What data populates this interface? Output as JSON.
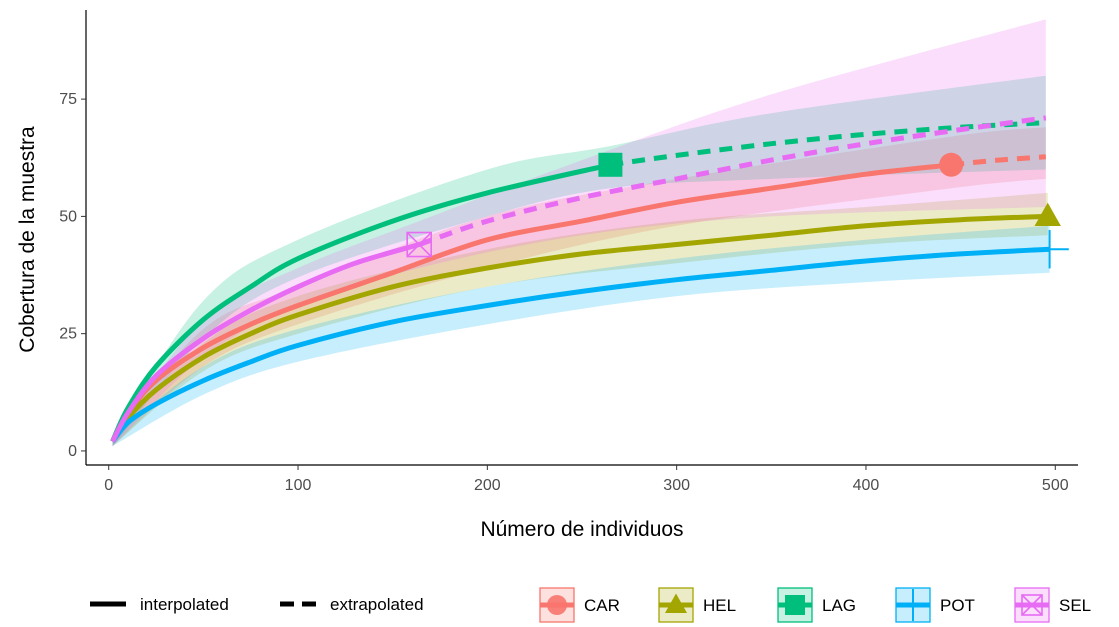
{
  "chart_data": {
    "type": "line",
    "xlabel": "Número de individuos",
    "ylabel": "Cobertura de la muestra",
    "xlim": [
      -12,
      512
    ],
    "ylim": [
      -3,
      94
    ],
    "x_ticks": [
      0,
      100,
      200,
      300,
      400,
      500
    ],
    "y_ticks": [
      0,
      25,
      50,
      75
    ],
    "legend_linetype": [
      {
        "label": "interpolated",
        "style": "solid"
      },
      {
        "label": "extrapolated",
        "style": "dashed"
      }
    ],
    "legend_position": "bottom",
    "grid": false,
    "series": [
      {
        "name": "CAR",
        "color": "#F8766D",
        "marker": "circle",
        "observed": {
          "x": 445,
          "y": 61
        },
        "interpolated": [
          [
            2,
            2
          ],
          [
            10,
            8
          ],
          [
            25,
            15
          ],
          [
            50,
            22
          ],
          [
            75,
            27
          ],
          [
            100,
            31
          ],
          [
            150,
            38
          ],
          [
            200,
            45
          ],
          [
            250,
            49
          ],
          [
            300,
            53
          ],
          [
            350,
            56
          ],
          [
            400,
            59
          ],
          [
            445,
            61
          ]
        ],
        "extrapolated": [
          [
            445,
            61
          ],
          [
            470,
            62
          ],
          [
            495,
            62.7
          ]
        ],
        "ci_lower": [
          [
            2,
            1
          ],
          [
            50,
            18
          ],
          [
            100,
            27
          ],
          [
            200,
            39
          ],
          [
            300,
            48
          ],
          [
            445,
            56
          ],
          [
            495,
            58
          ]
        ],
        "ci_upper": [
          [
            2,
            3
          ],
          [
            50,
            26
          ],
          [
            100,
            35
          ],
          [
            200,
            50
          ],
          [
            300,
            58
          ],
          [
            445,
            67
          ],
          [
            495,
            69
          ]
        ]
      },
      {
        "name": "HEL",
        "color": "#A3A500",
        "marker": "triangle",
        "observed": {
          "x": 496,
          "y": 50
        },
        "interpolated": [
          [
            2,
            2
          ],
          [
            10,
            7
          ],
          [
            25,
            13
          ],
          [
            50,
            20
          ],
          [
            75,
            25
          ],
          [
            100,
            29
          ],
          [
            150,
            35
          ],
          [
            200,
            39
          ],
          [
            250,
            42
          ],
          [
            300,
            44
          ],
          [
            350,
            46
          ],
          [
            400,
            48
          ],
          [
            450,
            49.3
          ],
          [
            496,
            50
          ]
        ],
        "extrapolated": [],
        "ci_lower": [
          [
            2,
            1
          ],
          [
            50,
            17
          ],
          [
            100,
            25
          ],
          [
            200,
            35
          ],
          [
            300,
            40
          ],
          [
            400,
            44
          ],
          [
            496,
            46
          ]
        ],
        "ci_upper": [
          [
            2,
            3
          ],
          [
            50,
            23
          ],
          [
            100,
            33
          ],
          [
            200,
            43
          ],
          [
            300,
            49
          ],
          [
            400,
            52
          ],
          [
            496,
            55
          ]
        ]
      },
      {
        "name": "LAG",
        "color": "#00BF7D",
        "marker": "square",
        "observed": {
          "x": 265,
          "y": 61
        },
        "interpolated": [
          [
            2,
            2
          ],
          [
            10,
            9
          ],
          [
            25,
            18
          ],
          [
            50,
            28
          ],
          [
            75,
            35
          ],
          [
            100,
            41
          ],
          [
            150,
            49
          ],
          [
            200,
            55
          ],
          [
            265,
            61
          ]
        ],
        "extrapolated": [
          [
            265,
            61
          ],
          [
            300,
            63
          ],
          [
            350,
            65.5
          ],
          [
            400,
            67.5
          ],
          [
            450,
            69
          ],
          [
            495,
            70
          ]
        ],
        "ci_lower": [
          [
            2,
            1
          ],
          [
            50,
            24
          ],
          [
            100,
            37
          ],
          [
            200,
            50
          ],
          [
            265,
            56
          ],
          [
            350,
            58
          ],
          [
            495,
            60
          ]
        ],
        "ci_upper": [
          [
            2,
            3
          ],
          [
            50,
            32
          ],
          [
            100,
            45
          ],
          [
            200,
            60
          ],
          [
            265,
            65
          ],
          [
            350,
            72
          ],
          [
            495,
            80
          ]
        ]
      },
      {
        "name": "POT",
        "color": "#00B0F6",
        "marker": "plus",
        "observed": {
          "x": 497,
          "y": 43
        },
        "interpolated": [
          [
            2,
            2
          ],
          [
            10,
            6
          ],
          [
            25,
            10
          ],
          [
            50,
            15
          ],
          [
            75,
            19
          ],
          [
            100,
            22.5
          ],
          [
            150,
            27.5
          ],
          [
            200,
            31
          ],
          [
            250,
            34
          ],
          [
            300,
            36.5
          ],
          [
            350,
            38.5
          ],
          [
            400,
            40.5
          ],
          [
            450,
            42
          ],
          [
            497,
            43
          ]
        ],
        "extrapolated": [],
        "ci_lower": [
          [
            2,
            1
          ],
          [
            50,
            12
          ],
          [
            100,
            19
          ],
          [
            200,
            27
          ],
          [
            300,
            33
          ],
          [
            400,
            36
          ],
          [
            497,
            38
          ]
        ],
        "ci_upper": [
          [
            2,
            3
          ],
          [
            50,
            18
          ],
          [
            100,
            26
          ],
          [
            200,
            35
          ],
          [
            300,
            41
          ],
          [
            400,
            45
          ],
          [
            497,
            48
          ]
        ]
      },
      {
        "name": "SEL",
        "color": "#E76BF3",
        "marker": "square-cross",
        "observed": {
          "x": 164,
          "y": 44
        },
        "interpolated": [
          [
            2,
            2
          ],
          [
            10,
            8
          ],
          [
            25,
            16
          ],
          [
            50,
            24
          ],
          [
            75,
            30
          ],
          [
            100,
            35
          ],
          [
            130,
            40
          ],
          [
            164,
            44
          ]
        ],
        "extrapolated": [
          [
            164,
            44
          ],
          [
            200,
            49
          ],
          [
            250,
            54
          ],
          [
            300,
            58
          ],
          [
            350,
            62
          ],
          [
            400,
            65.5
          ],
          [
            450,
            68.5
          ],
          [
            495,
            71
          ]
        ],
        "ci_lower": [
          [
            2,
            1
          ],
          [
            50,
            20
          ],
          [
            100,
            31
          ],
          [
            164,
            39
          ],
          [
            250,
            46
          ],
          [
            350,
            50
          ],
          [
            495,
            52
          ]
        ],
        "ci_upper": [
          [
            2,
            3
          ],
          [
            50,
            28
          ],
          [
            100,
            39
          ],
          [
            164,
            49
          ],
          [
            250,
            62
          ],
          [
            350,
            76
          ],
          [
            495,
            92
          ]
        ]
      }
    ]
  }
}
